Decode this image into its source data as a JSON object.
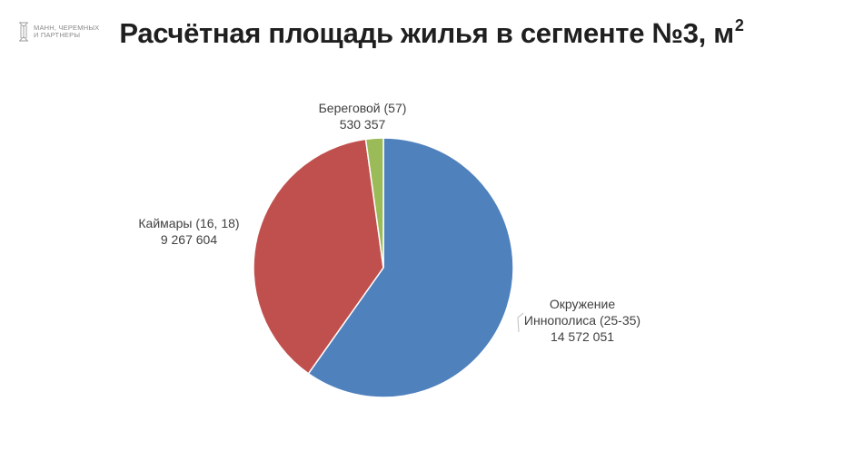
{
  "header": {
    "logo_text": "МАНН, ЧЕРЕМНЫХ\nИ ПАРТНЕРЫ",
    "title": "Расчётная площадь жилья в сегменте №3, м",
    "title_sup": "2"
  },
  "chart_data": {
    "type": "pie",
    "title": "Расчётная площадь жилья в сегменте №3, м2",
    "categories": [
      "Окружение Иннополиса (25-35)",
      "Кaймары (16, 18)",
      "Береговой (57)"
    ],
    "values": [
      14572051,
      9267604,
      530357
    ],
    "value_labels": [
      "14 572 051",
      "9 267 604",
      "530 357"
    ],
    "label_lines": [
      [
        "Окружение",
        "Иннополиса (25-35)"
      ],
      [
        "Каймары (16, 18)"
      ],
      [
        "Береговой (57)"
      ]
    ],
    "colors": [
      "#4f81bd",
      "#c0504d",
      "#9bbb59"
    ],
    "start": "12 o'clock",
    "direction": "clockwise",
    "legend": "none"
  }
}
